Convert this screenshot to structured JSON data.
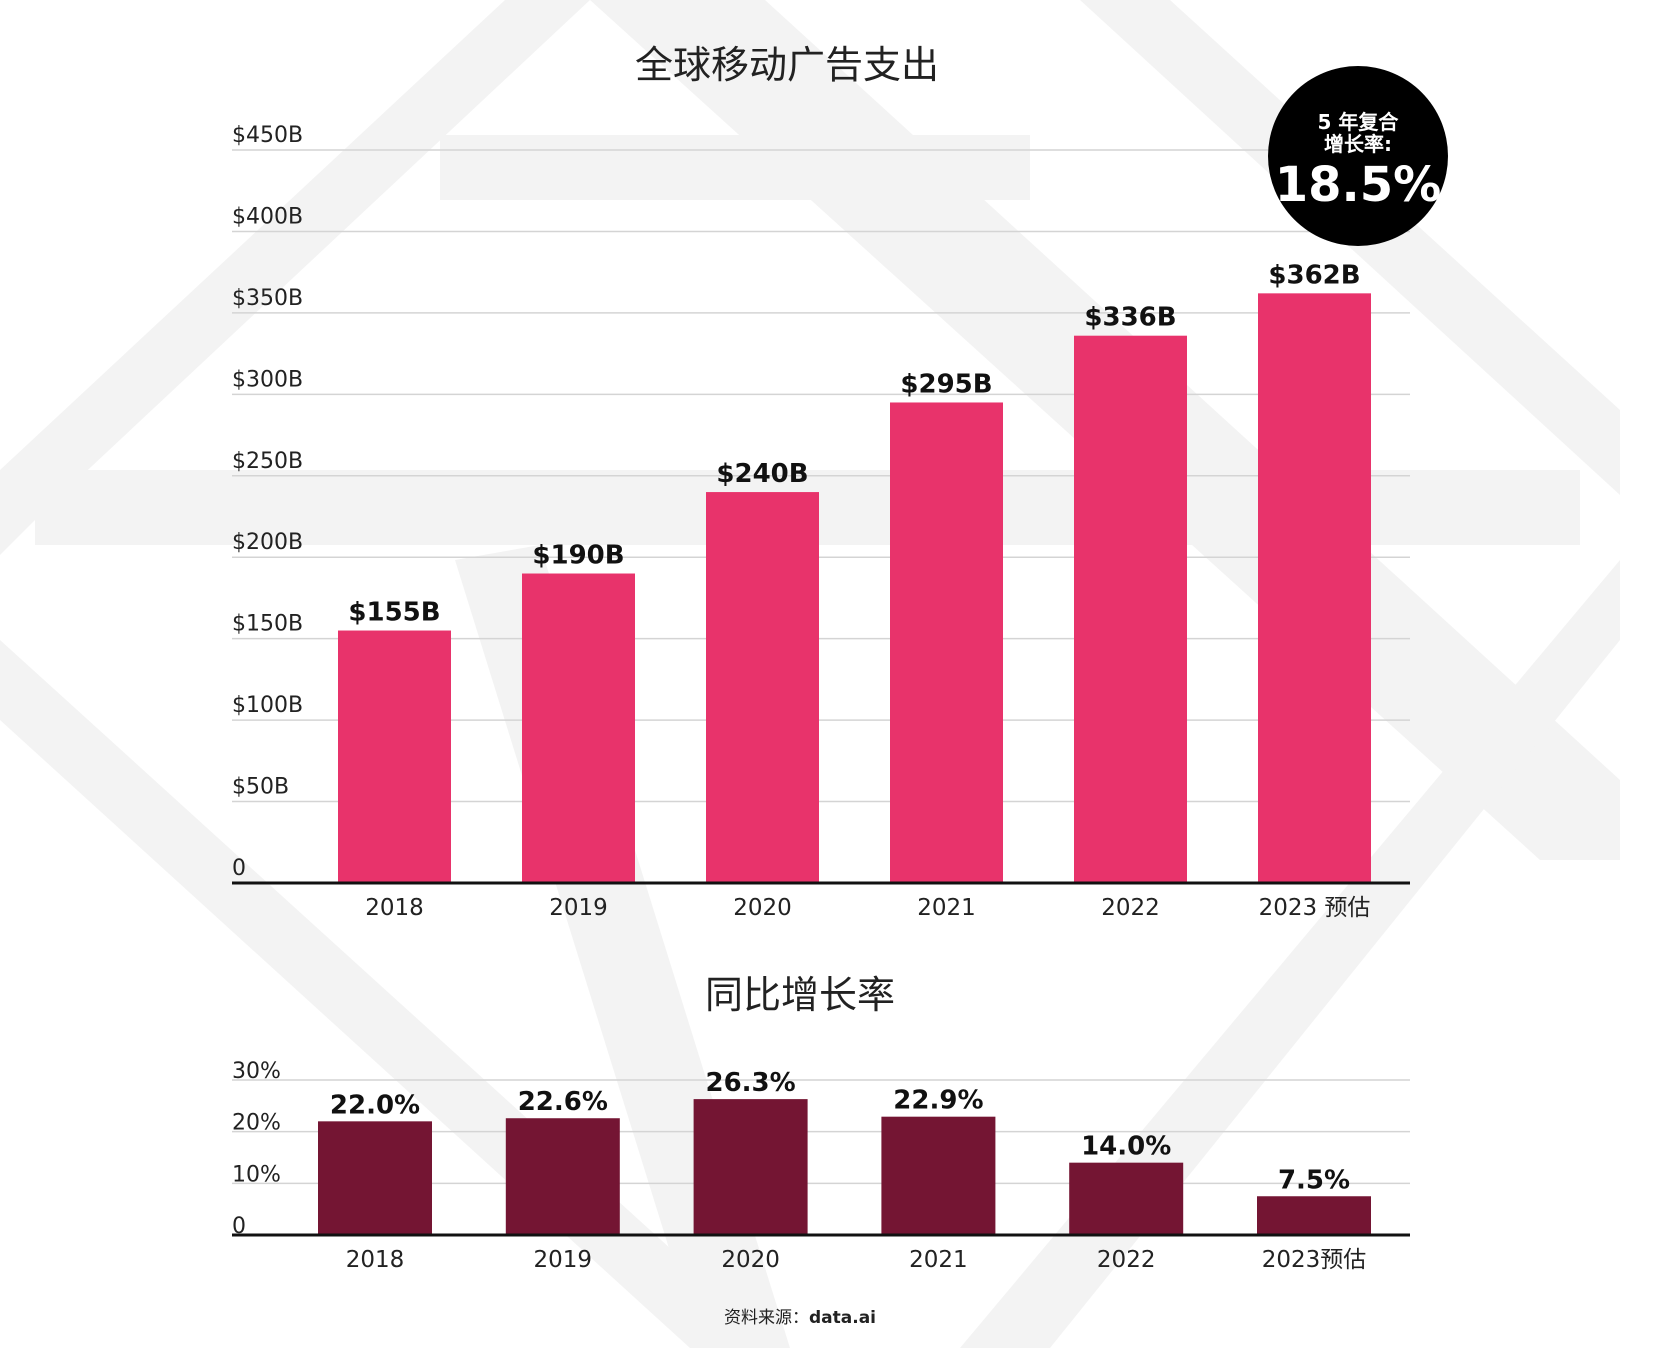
{
  "chart_data": [
    {
      "type": "bar",
      "title": "全球移动广告支出",
      "categories": [
        "2018",
        "2019",
        "2020",
        "2021",
        "2022",
        "2023 预估"
      ],
      "values": [
        155,
        190,
        240,
        295,
        336,
        362
      ],
      "value_labels": [
        "$155B",
        "$190B",
        "$240B",
        "$295B",
        "$336B",
        "$362B"
      ],
      "ylim": [
        0,
        450
      ],
      "yticks": [
        {
          "value": 0,
          "label": "0"
        },
        {
          "value": 50,
          "label": "$50B"
        },
        {
          "value": 100,
          "label": "$100B"
        },
        {
          "value": 150,
          "label": "$150B"
        },
        {
          "value": 200,
          "label": "$200B"
        },
        {
          "value": 250,
          "label": "$250B"
        },
        {
          "value": 300,
          "label": "$300B"
        },
        {
          "value": 350,
          "label": "$350B"
        },
        {
          "value": 400,
          "label": "$400B"
        },
        {
          "value": 450,
          "label": "$450B"
        }
      ],
      "grid": true,
      "color": "#e8336b"
    },
    {
      "type": "bar",
      "title": "同比增长率",
      "categories": [
        "2018",
        "2019",
        "2020",
        "2021",
        "2022",
        "2023预估"
      ],
      "values": [
        22.0,
        22.6,
        26.3,
        22.9,
        14.0,
        7.5
      ],
      "value_labels": [
        "22.0%",
        "22.6%",
        "26.3%",
        "22.9%",
        "14.0%",
        "7.5%"
      ],
      "ylim": [
        0,
        30
      ],
      "yticks": [
        {
          "value": 0,
          "label": "0"
        },
        {
          "value": 10,
          "label": "10%"
        },
        {
          "value": 20,
          "label": "20%"
        },
        {
          "value": 30,
          "label": "30%"
        }
      ],
      "grid": true,
      "color": "#741533"
    }
  ],
  "badge": {
    "line1": "5 年复合",
    "line2": "增长率:",
    "value": "18.5%"
  },
  "source": {
    "label": "资料来源：",
    "brand": "data.ai"
  },
  "colors": {
    "watermark": "#f3f3f3"
  }
}
